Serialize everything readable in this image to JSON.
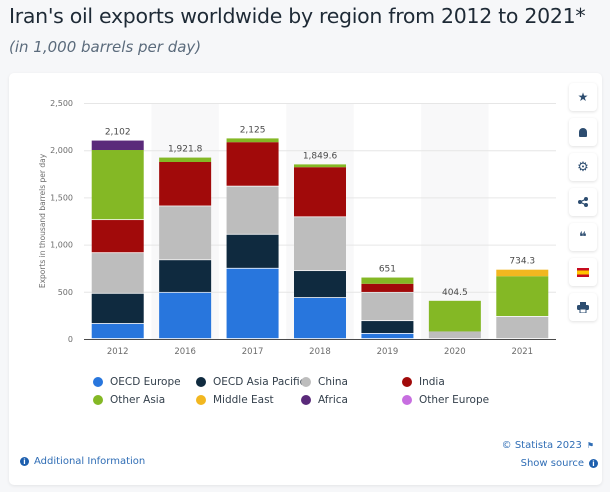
{
  "header": {
    "title": "Iran's oil exports worldwide by region from 2012 to 2021*",
    "subtitle": "(in 1,000 barrels per day)"
  },
  "sidebar": {
    "items": [
      {
        "icon": "star-icon",
        "glyph": "★"
      },
      {
        "icon": "bell-icon",
        "glyph": "🔔"
      },
      {
        "icon": "gear-icon",
        "glyph": "⚙"
      },
      {
        "icon": "share-icon",
        "glyph": "<"
      },
      {
        "icon": "quote-icon",
        "glyph": "❝"
      },
      {
        "icon": "spain-flag-icon",
        "glyph": ""
      },
      {
        "icon": "print-icon",
        "glyph": "⎙"
      }
    ]
  },
  "footer": {
    "additional_info": "Additional Information",
    "copyright": "© Statista 2023",
    "show_source": "Show source"
  },
  "chart_data": {
    "type": "bar",
    "stacked": true,
    "title": "Iran's oil exports worldwide by region from 2012 to 2021*",
    "subtitle": "(in 1,000 barrels per day)",
    "xlabel": "",
    "ylabel": "Exports in thousand barrels per day",
    "ylim": [
      0,
      2500
    ],
    "yticks": [
      0,
      500,
      1000,
      1500,
      2000,
      2500
    ],
    "ytick_labels": [
      "0",
      "500",
      "1,000",
      "1,500",
      "2,000",
      "2,500"
    ],
    "grid": true,
    "legend_position": "bottom",
    "categories": [
      "2012",
      "2016",
      "2017",
      "2018",
      "2019",
      "2020",
      "2021"
    ],
    "totals": [
      2102,
      1921.8,
      2125,
      1849.6,
      651,
      404.5,
      734.3
    ],
    "total_labels": [
      "2,102",
      "1,921.8",
      "2,125",
      "1,849.6",
      "651",
      "404.5",
      "734.3"
    ],
    "series": [
      {
        "name": "OECD Europe",
        "color": "#2876dd",
        "values": [
          160,
          490,
          745,
          435,
          55,
          0,
          0
        ]
      },
      {
        "name": "OECD Asia Pacific",
        "color": "#0f2a3f",
        "values": [
          320,
          345,
          360,
          285,
          135,
          0,
          0
        ]
      },
      {
        "name": "China",
        "color": "#bdbdbd",
        "values": [
          430,
          570,
          510,
          570,
          300,
          80,
          235
        ]
      },
      {
        "name": "India",
        "color": "#a10a0a",
        "values": [
          350,
          470,
          470,
          530,
          95,
          0,
          0
        ]
      },
      {
        "name": "Other Asia",
        "color": "#84b825",
        "values": [
          742,
          46.8,
          40,
          29.6,
          66,
          324.5,
          430
        ]
      },
      {
        "name": "Middle East",
        "color": "#f2b720",
        "values": [
          0,
          0,
          0,
          0,
          0,
          0,
          69.3
        ]
      },
      {
        "name": "Africa",
        "color": "#5a2a7a",
        "values": [
          100,
          0,
          0,
          0,
          0,
          0,
          0
        ]
      },
      {
        "name": "Other Europe",
        "color": "#c76ee0",
        "values": [
          0,
          0,
          0,
          0,
          0,
          0,
          0
        ]
      }
    ]
  }
}
